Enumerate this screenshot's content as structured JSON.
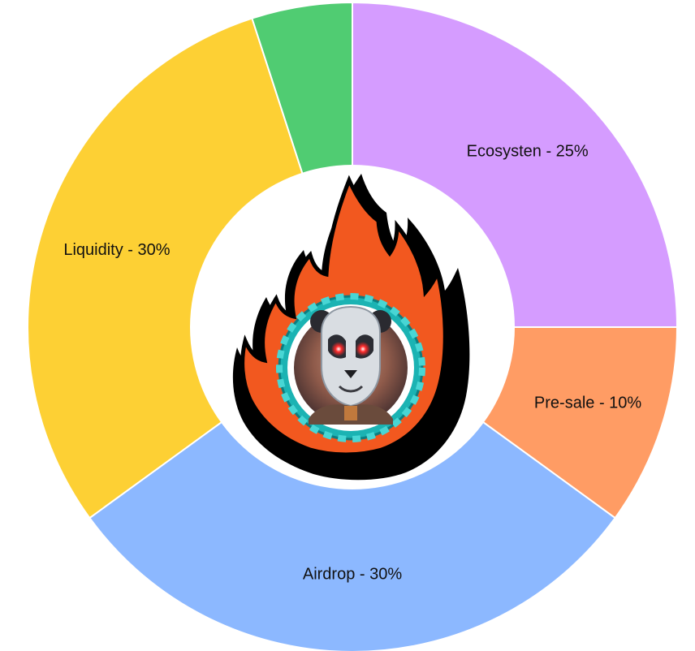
{
  "chart_data": {
    "type": "pie",
    "variant": "donut",
    "title": "",
    "slices": [
      {
        "label": "Ecosysten - 25%",
        "value": 25,
        "color": "#d59cff"
      },
      {
        "label": "Pre-sale - 10%",
        "value": 10,
        "color": "#ff9c64"
      },
      {
        "label": "Airdrop - 30%",
        "value": 30,
        "color": "#8cb8ff"
      },
      {
        "label": "Liquidity - 30%",
        "value": 30,
        "color": "#fdd034"
      },
      {
        "label": "",
        "value": 5,
        "color": "#50cc72"
      }
    ],
    "legend": "none",
    "center_image": "fire-panda-robot-logo"
  }
}
